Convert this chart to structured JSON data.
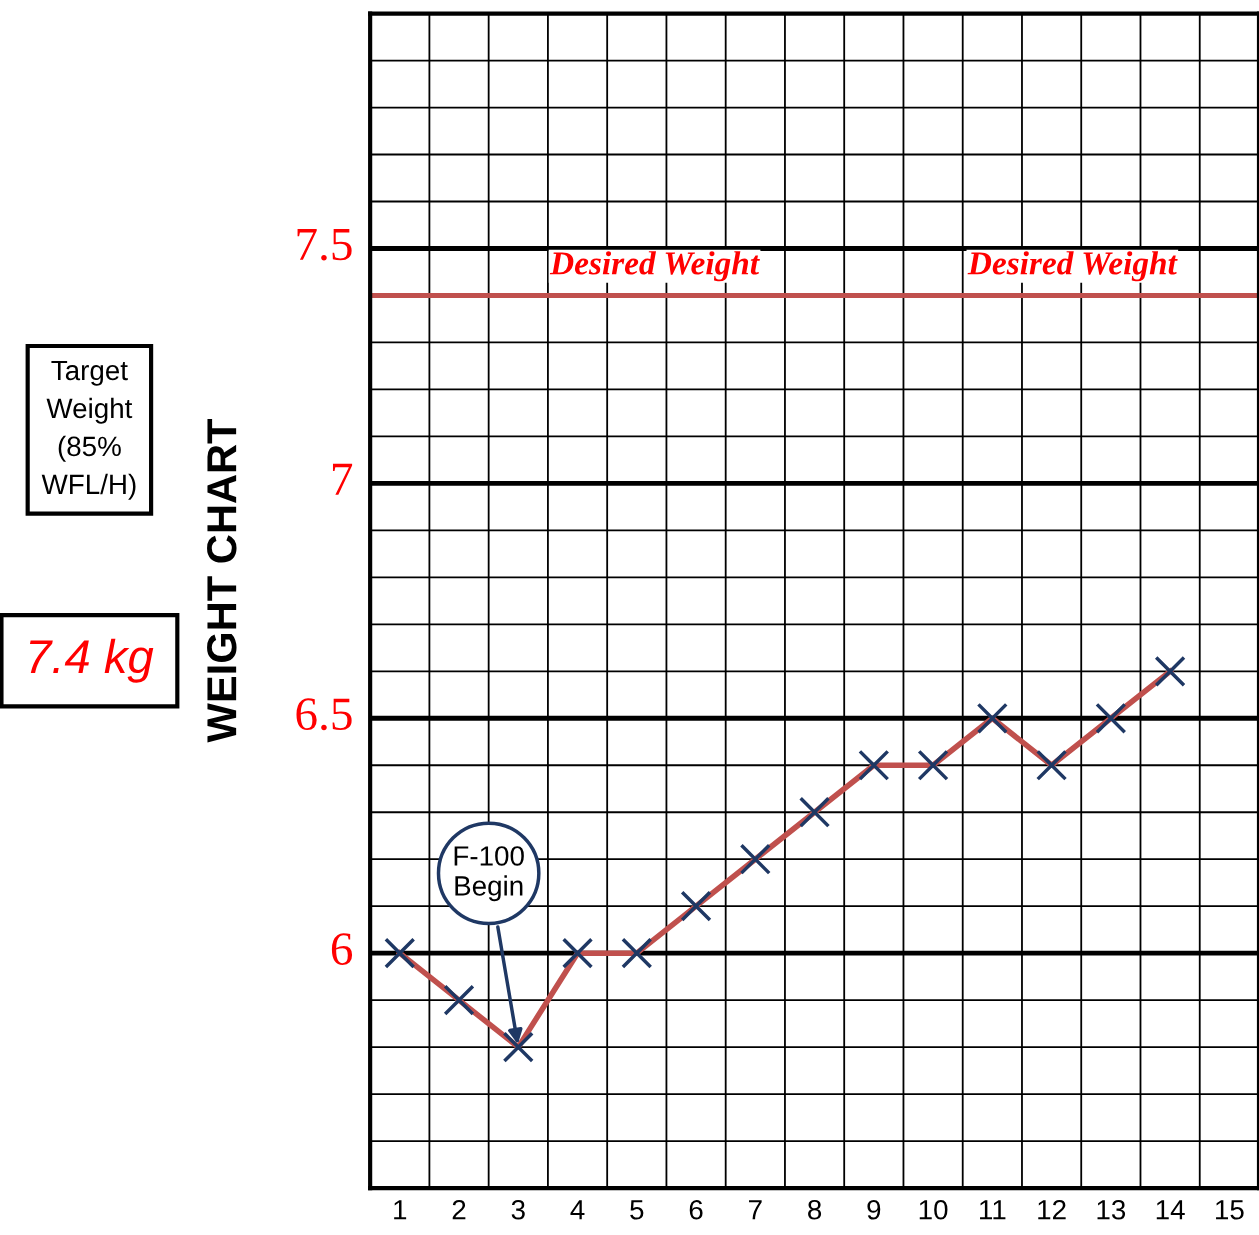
{
  "chart_data": {
    "type": "line",
    "title": "WEIGHT CHART",
    "categories": [
      "1",
      "2",
      "3",
      "4",
      "5",
      "6",
      "7",
      "8",
      "9",
      "10",
      "11",
      "12",
      "13",
      "14",
      "15"
    ],
    "series": [
      {
        "color": "#c0504d",
        "values": [
          6.0,
          5.9,
          5.8,
          6.0,
          6.0,
          6.1,
          6.2,
          6.3,
          6.4,
          6.4,
          6.5,
          6.4,
          6.5,
          6.6,
          null
        ]
      },
      {
        "type": "scatter",
        "color": "#1f3864",
        "values": [
          6.0,
          5.9,
          5.8,
          6.0,
          6.0,
          6.1,
          6.2,
          6.3,
          6.4,
          6.4,
          6.5,
          6.4,
          6.5,
          6.6,
          null
        ]
      }
    ],
    "marker": "cross",
    "line_style": "solid",
    "ylim": [
      5.5,
      8.0
    ],
    "yticks": [
      {
        "value": 5.6,
        "label": null
      },
      {
        "value": 5.7,
        "label": null
      },
      {
        "value": 5.8,
        "label": null
      },
      {
        "value": 5.9,
        "label": null
      },
      6,
      {
        "value": 6.1,
        "label": null
      },
      {
        "value": 6.2,
        "label": null
      },
      {
        "value": 6.3,
        "label": null
      },
      {
        "value": 6.4,
        "label": null
      },
      6.5,
      {
        "value": 6.6,
        "label": null
      },
      {
        "value": 6.7,
        "label": null
      },
      {
        "value": 6.8,
        "label": null
      },
      {
        "value": 6.9,
        "label": null
      },
      7,
      {
        "value": 7.1,
        "label": null
      },
      {
        "value": 7.2,
        "label": null
      },
      {
        "value": 7.3,
        "label": null
      },
      {
        "value": 7.4,
        "label": null
      },
      7.5,
      {
        "value": 7.6,
        "label": null
      },
      {
        "value": 7.7,
        "label": null
      },
      {
        "value": 7.8,
        "label": null
      },
      {
        "value": 7.9,
        "label": null
      }
    ],
    "grid": true,
    "ref_lines": [
      {
        "axis": "y",
        "value": 7.4,
        "label": "Desired Weight",
        "color": "#c0504d"
      }
    ],
    "annotations": [
      {
        "text": "F-100\nBegin",
        "x": "3",
        "y": 5.8
      },
      "Target\nWeight\n(85%\nWFL/H)",
      "7.4 kg"
    ]
  }
}
